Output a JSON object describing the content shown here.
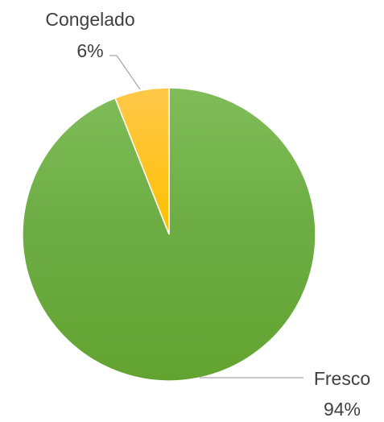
{
  "chart_data": {
    "type": "pie",
    "slices": [
      {
        "label": "Fresco",
        "value": 94,
        "value_label": "94%",
        "color": "#6aaa3f"
      },
      {
        "label": "Congelado",
        "value": 6,
        "value_label": "6%",
        "color": "#ffc000"
      }
    ],
    "title": "",
    "legend": false
  }
}
